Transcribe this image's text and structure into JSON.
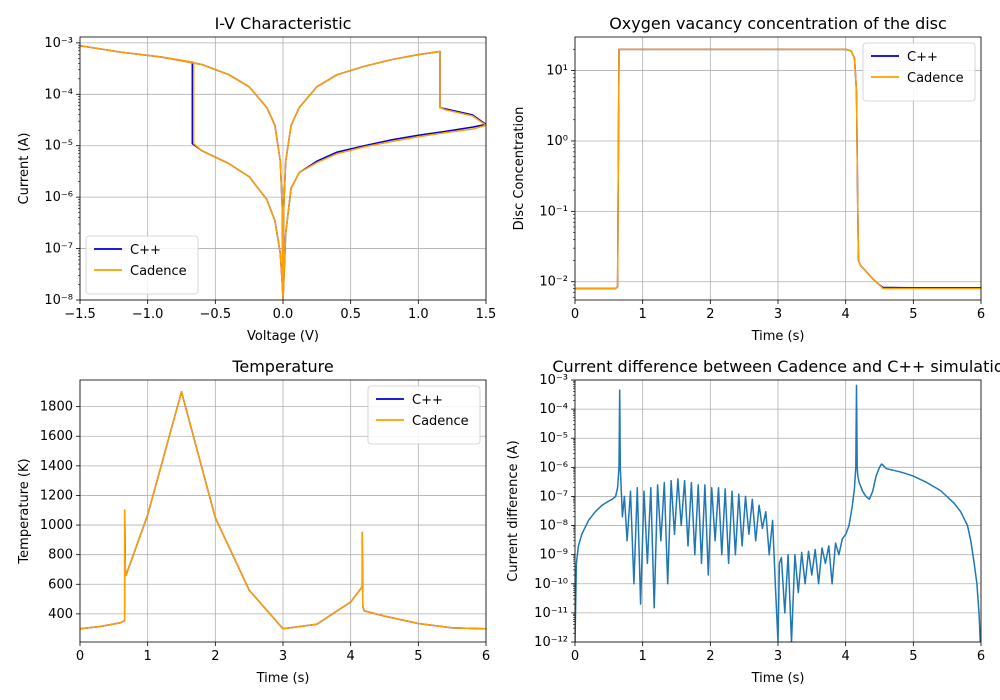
{
  "chart_data": [
    {
      "type": "line",
      "title": "I-V Characteristic",
      "xlabel": "Voltage (V)",
      "ylabel": "Current (A)",
      "xlim": [
        -1.5,
        1.5
      ],
      "ylim": [
        1e-08,
        0.0013
      ],
      "yscale": "log",
      "grid": true,
      "legend": "lower-left",
      "xticks": [
        -1.5,
        -1.0,
        -0.5,
        0.0,
        0.5,
        1.0,
        1.5
      ],
      "xtick_labels": [
        "−1.5",
        "−1.0",
        "−0.5",
        "0.0",
        "0.5",
        "1.0",
        "1.5"
      ],
      "yticks": [
        -8,
        -7,
        -6,
        -5,
        -4,
        -3
      ],
      "ytick_labels": [
        "10⁻⁸",
        "10⁻⁷",
        "10⁻⁶",
        "10⁻⁵",
        "10⁻⁴",
        "10⁻³"
      ],
      "series": [
        {
          "name": "C++",
          "color": "#0000cc",
          "x": [
            -1.5,
            -1.2,
            -0.9,
            -0.67,
            -0.67,
            -0.6,
            -0.4,
            -0.25,
            -0.12,
            -0.06,
            -0.02,
            -0.005,
            0.0,
            0.005,
            0.02,
            0.06,
            0.12,
            0.25,
            0.4,
            0.6,
            0.8,
            1.0,
            1.2,
            1.4,
            1.5,
            1.5,
            1.4,
            1.2,
            1.16,
            1.16,
            1.0,
            0.8,
            0.6,
            0.4,
            0.25,
            0.12,
            0.06,
            0.02,
            0.005,
            0.0,
            -0.005,
            -0.02,
            -0.06,
            -0.12,
            -0.25,
            -0.4,
            -0.6,
            -0.9,
            -1.2,
            -1.5
          ],
          "y": [
            0.00088,
            0.00066,
            0.00053,
            0.00042,
            1.1e-05,
            8e-06,
            4.5e-06,
            2.5e-06,
            9e-07,
            3.5e-07,
            8e-08,
            2e-08,
            1e-08,
            2e-08,
            2e-07,
            1.5e-06,
            3e-06,
            5e-06,
            7.5e-06,
            1e-05,
            1.3e-05,
            1.6e-05,
            1.9e-05,
            2.3e-05,
            2.6e-05,
            2.6e-05,
            4e-05,
            5.2e-05,
            5.5e-05,
            0.00068,
            0.00059,
            0.00047,
            0.00035,
            0.00024,
            0.00014,
            5.5e-05,
            2.5e-05,
            5e-06,
            6e-07,
            1e-08,
            6e-07,
            5e-06,
            2.5e-05,
            5.5e-05,
            0.00014,
            0.00024,
            0.00038,
            0.00053,
            0.00066,
            0.00088
          ]
        },
        {
          "name": "Cadence",
          "color": "#ff9f00",
          "x": [
            -1.5,
            -1.2,
            -0.9,
            -0.66,
            -0.66,
            -0.6,
            -0.4,
            -0.25,
            -0.12,
            -0.06,
            -0.02,
            -0.005,
            0.0,
            0.005,
            0.02,
            0.06,
            0.12,
            0.25,
            0.4,
            0.6,
            0.8,
            1.0,
            1.2,
            1.4,
            1.5,
            1.5,
            1.4,
            1.2,
            1.16,
            1.16,
            1.0,
            0.8,
            0.6,
            0.4,
            0.25,
            0.12,
            0.06,
            0.02,
            0.005,
            0.0,
            -0.005,
            -0.02,
            -0.06,
            -0.12,
            -0.25,
            -0.4,
            -0.6,
            -0.9,
            -1.2,
            -1.5
          ],
          "y": [
            0.00088,
            0.00066,
            0.00053,
            0.00042,
            1.1e-05,
            8e-06,
            4.5e-06,
            2.5e-06,
            9e-07,
            3.5e-07,
            8e-08,
            2e-08,
            1e-08,
            2e-08,
            2e-07,
            1.5e-06,
            3e-06,
            4.7e-06,
            7e-06,
            9.5e-06,
            1.2e-05,
            1.5e-05,
            1.8e-05,
            2.1e-05,
            2.5e-05,
            2.5e-05,
            3.8e-05,
            5e-05,
            5.5e-05,
            0.00068,
            0.00059,
            0.00047,
            0.00035,
            0.00024,
            0.00014,
            5.5e-05,
            2.5e-05,
            5e-06,
            6e-07,
            1e-08,
            6e-07,
            5e-06,
            2.5e-05,
            5.5e-05,
            0.00014,
            0.00024,
            0.00038,
            0.00053,
            0.00066,
            0.00088
          ]
        }
      ]
    },
    {
      "type": "line",
      "title": "Oxygen vacancy concentration of the disc",
      "xlabel": "Time (s)",
      "ylabel": "Disc Concentration",
      "xlim": [
        0,
        6
      ],
      "ylim": [
        0.0055,
        30
      ],
      "yscale": "log",
      "grid": true,
      "legend": "top-right",
      "xticks": [
        0,
        1,
        2,
        3,
        4,
        5,
        6
      ],
      "xtick_labels": [
        "0",
        "1",
        "2",
        "3",
        "4",
        "5",
        "6"
      ],
      "yticks": [
        -2,
        -1,
        0,
        1
      ],
      "ytick_labels": [
        "10⁻²",
        "10⁻¹",
        "10⁰",
        "10¹"
      ],
      "series": [
        {
          "name": "C++",
          "color": "#0000cc",
          "x": [
            0,
            0.6,
            0.63,
            0.65,
            0.7,
            2.0,
            3.0,
            4.0,
            4.08,
            4.13,
            4.16,
            4.18,
            4.19,
            4.22,
            4.3,
            4.4,
            4.5,
            4.55,
            5.0,
            6.0
          ],
          "y": [
            0.008,
            0.008,
            0.0085,
            20,
            20,
            20,
            20,
            20,
            19,
            15,
            5,
            0.1,
            0.02,
            0.017,
            0.014,
            0.011,
            0.009,
            0.0083,
            0.0082,
            0.0082
          ]
        },
        {
          "name": "Cadence",
          "color": "#ff9f00",
          "x": [
            0,
            0.6,
            0.63,
            0.65,
            0.7,
            2.0,
            3.0,
            4.0,
            4.08,
            4.13,
            4.16,
            4.18,
            4.19,
            4.22,
            4.3,
            4.4,
            4.5,
            4.55,
            5.0,
            6.0
          ],
          "y": [
            0.008,
            0.008,
            0.0085,
            20,
            20,
            20,
            20,
            20,
            19,
            15,
            5,
            0.1,
            0.02,
            0.017,
            0.014,
            0.011,
            0.009,
            0.008,
            0.008,
            0.008
          ]
        }
      ]
    },
    {
      "type": "line",
      "title": "Temperature",
      "xlabel": "Time (s)",
      "ylabel": "Temperature (K)",
      "xlim": [
        0,
        6
      ],
      "ylim": [
        210,
        1980
      ],
      "grid": true,
      "legend": "top-right",
      "xticks": [
        0,
        1,
        2,
        3,
        4,
        5,
        6
      ],
      "xtick_labels": [
        "0",
        "1",
        "2",
        "3",
        "4",
        "5",
        "6"
      ],
      "yticks": [
        400,
        600,
        800,
        1000,
        1200,
        1400,
        1600,
        1800
      ],
      "ytick_labels": [
        "400",
        "600",
        "800",
        "1000",
        "1200",
        "1400",
        "1600",
        "1800"
      ],
      "series": [
        {
          "name": "C++",
          "color": "#0000cc",
          "x": [
            0,
            0.3,
            0.6,
            0.66,
            0.66,
            0.67,
            0.68,
            1.0,
            1.5,
            2.0,
            2.5,
            3.0,
            3.5,
            4.0,
            4.15,
            4.17,
            4.17,
            4.18,
            4.2,
            4.5,
            5.0,
            5.5,
            6.0
          ],
          "y": [
            300,
            315,
            340,
            355,
            1100,
            700,
            660,
            1070,
            1900,
            1050,
            560,
            300,
            330,
            480,
            570,
            590,
            950,
            450,
            420,
            385,
            335,
            305,
            300
          ]
        },
        {
          "name": "Cadence",
          "color": "#ff9f00",
          "x": [
            0,
            0.3,
            0.6,
            0.66,
            0.66,
            0.67,
            0.68,
            1.0,
            1.5,
            2.0,
            2.5,
            3.0,
            3.5,
            4.0,
            4.15,
            4.17,
            4.17,
            4.18,
            4.2,
            4.5,
            5.0,
            5.5,
            6.0
          ],
          "y": [
            300,
            315,
            340,
            355,
            1100,
            700,
            660,
            1070,
            1900,
            1050,
            560,
            300,
            330,
            480,
            570,
            590,
            950,
            450,
            420,
            385,
            335,
            305,
            300
          ]
        }
      ]
    },
    {
      "type": "line",
      "title": "Current difference between Cadence and C++ simulatio",
      "xlabel": "Time (s)",
      "ylabel": "Current difference (A)",
      "xlim": [
        0,
        6
      ],
      "ylim": [
        1e-12,
        0.001
      ],
      "yscale": "log",
      "grid": true,
      "xticks": [
        0,
        1,
        2,
        3,
        4,
        5,
        6
      ],
      "xtick_labels": [
        "0",
        "1",
        "2",
        "3",
        "4",
        "5",
        "6"
      ],
      "yticks": [
        -12,
        -11,
        -10,
        -9,
        -8,
        -7,
        -6,
        -5,
        -4,
        -3
      ],
      "ytick_labels": [
        "10⁻¹²",
        "10⁻¹¹",
        "10⁻¹⁰",
        "10⁻⁹",
        "10⁻⁸",
        "10⁻⁷",
        "10⁻⁶",
        "10⁻⁵",
        "10⁻⁴",
        "10⁻³"
      ],
      "series": [
        {
          "name": "",
          "color": "#1f77b4",
          "x": [
            0.0,
            0.02,
            0.05,
            0.1,
            0.2,
            0.3,
            0.4,
            0.5,
            0.55,
            0.6,
            0.63,
            0.65,
            0.66,
            0.67,
            0.7,
            0.73,
            0.77,
            0.82,
            0.87,
            0.92,
            0.97,
            1.02,
            1.07,
            1.12,
            1.17,
            1.22,
            1.27,
            1.32,
            1.37,
            1.42,
            1.47,
            1.52,
            1.57,
            1.62,
            1.67,
            1.72,
            1.77,
            1.82,
            1.87,
            1.92,
            1.97,
            2.02,
            2.07,
            2.12,
            2.17,
            2.22,
            2.27,
            2.32,
            2.37,
            2.42,
            2.47,
            2.52,
            2.57,
            2.62,
            2.67,
            2.72,
            2.77,
            2.82,
            2.87,
            2.92,
            2.96,
            3.0,
            3.02,
            3.05,
            3.1,
            3.15,
            3.2,
            3.25,
            3.3,
            3.35,
            3.4,
            3.45,
            3.5,
            3.55,
            3.6,
            3.65,
            3.7,
            3.75,
            3.8,
            3.85,
            3.9,
            3.95,
            4.0,
            4.05,
            4.1,
            4.13,
            4.15,
            4.16,
            4.17,
            4.18,
            4.2,
            4.25,
            4.3,
            4.35,
            4.4,
            4.45,
            4.5,
            4.53,
            4.55,
            4.6,
            4.7,
            4.8,
            4.9,
            5.0,
            5.2,
            5.4,
            5.6,
            5.7,
            5.8,
            5.85,
            5.9,
            5.94,
            5.97,
            5.99,
            6.0
          ],
          "y": [
            1e-12,
            5e-10,
            2e-09,
            5e-09,
            1.5e-08,
            3e-08,
            5e-08,
            7e-08,
            8e-08,
            1e-07,
            2e-07,
            1e-06,
            0.00045,
            1e-06,
            2e-08,
            1e-07,
            3e-09,
            1.5e-07,
            1e-10,
            2e-07,
            2e-11,
            1.5e-07,
            5e-10,
            2e-07,
            1.5e-11,
            2.5e-07,
            3e-09,
            3e-07,
            1e-10,
            3.5e-07,
            5e-09,
            4e-07,
            1e-08,
            3.5e-07,
            2e-09,
            3e-07,
            1e-09,
            2.5e-07,
            5e-10,
            2.5e-07,
            2e-10,
            2e-07,
            3e-09,
            2e-07,
            1e-09,
            1.8e-07,
            5e-10,
            1.5e-07,
            1e-09,
            1.2e-07,
            2e-09,
            1e-07,
            5e-09,
            8e-08,
            3e-09,
            5e-08,
            8e-09,
            3e-08,
            1e-09,
            1.5e-08,
            1e-10,
            1e-12,
            5e-10,
            8e-10,
            1e-11,
            1e-09,
            1e-12,
            1e-09,
            5e-11,
            1.2e-09,
            1e-10,
            1.3e-09,
            2e-10,
            1.5e-09,
            1e-10,
            1.7e-09,
            5e-10,
            2e-09,
            1e-10,
            2.5e-09,
            1e-09,
            3.5e-09,
            5e-09,
            1e-08,
            5e-08,
            2e-07,
            1e-06,
            0.00065,
            1e-06,
            5e-07,
            3e-07,
            1.5e-07,
            1e-07,
            8e-08,
            1.5e-07,
            5e-07,
            1e-06,
            1.3e-06,
            1.2e-06,
            9e-07,
            8e-07,
            7e-07,
            6e-07,
            5e-07,
            3e-07,
            1.6e-07,
            6e-08,
            3e-08,
            1e-08,
            3e-09,
            5e-10,
            1e-10,
            1e-11,
            1e-12,
            1e-12
          ]
        }
      ]
    }
  ]
}
